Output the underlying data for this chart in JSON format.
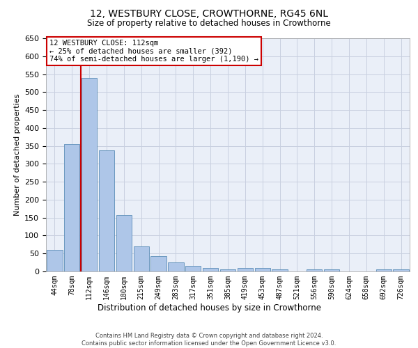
{
  "title_line1": "12, WESTBURY CLOSE, CROWTHORNE, RG45 6NL",
  "title_line2": "Size of property relative to detached houses in Crowthorne",
  "xlabel": "Distribution of detached houses by size in Crowthorne",
  "ylabel": "Number of detached properties",
  "categories": [
    "44sqm",
    "78sqm",
    "112sqm",
    "146sqm",
    "180sqm",
    "215sqm",
    "249sqm",
    "283sqm",
    "317sqm",
    "351sqm",
    "385sqm",
    "419sqm",
    "453sqm",
    "487sqm",
    "521sqm",
    "556sqm",
    "590sqm",
    "624sqm",
    "658sqm",
    "692sqm",
    "726sqm"
  ],
  "values": [
    60,
    355,
    540,
    338,
    157,
    70,
    42,
    25,
    16,
    10,
    5,
    10,
    10,
    5,
    0,
    5,
    5,
    0,
    0,
    5,
    5
  ],
  "bar_color": "#aec6e8",
  "bar_edgecolor": "#5b8db8",
  "highlight_bar_index": 2,
  "highlight_line_color": "#cc0000",
  "ylim": [
    0,
    650
  ],
  "yticks": [
    0,
    50,
    100,
    150,
    200,
    250,
    300,
    350,
    400,
    450,
    500,
    550,
    600,
    650
  ],
  "annotation_box_text": "12 WESTBURY CLOSE: 112sqm\n← 25% of detached houses are smaller (392)\n74% of semi-detached houses are larger (1,190) →",
  "annotation_box_color": "#cc0000",
  "background_color": "#ffffff",
  "grid_color": "#c8d0e0",
  "footer_line1": "Contains HM Land Registry data © Crown copyright and database right 2024.",
  "footer_line2": "Contains public sector information licensed under the Open Government Licence v3.0."
}
